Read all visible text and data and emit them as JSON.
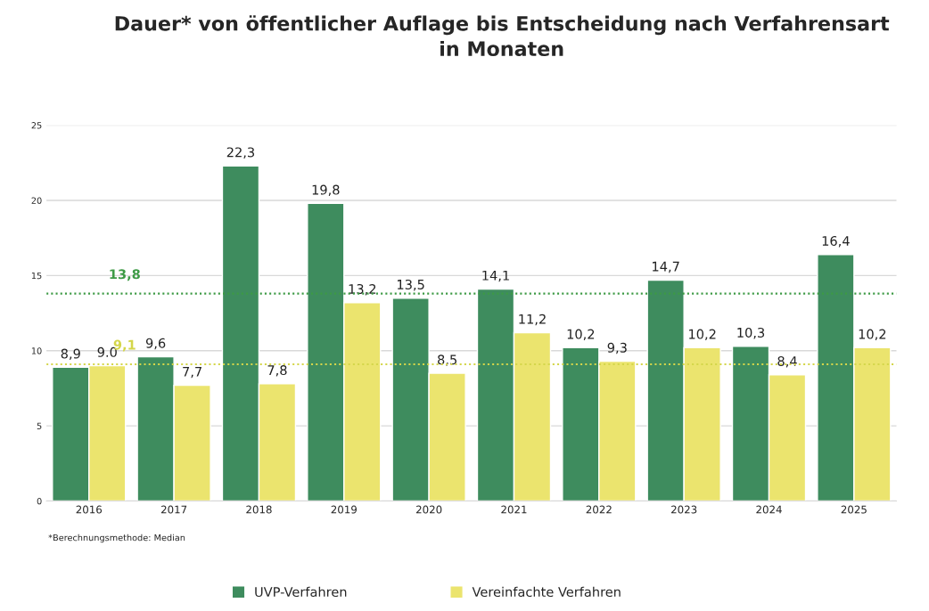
{
  "chart_data": {
    "type": "bar",
    "title": "Dauer* von öffentlicher Auflage bis Entscheidung nach Verfahrensart\nin Monaten",
    "categories": [
      "2016",
      "2017",
      "2018",
      "2019",
      "2020",
      "2021",
      "2022",
      "2023",
      "2024",
      "2025"
    ],
    "series": [
      {
        "name": "UVP-Verfahren",
        "color": "#3e8c5e",
        "values": [
          8.9,
          9.6,
          22.3,
          19.8,
          13.5,
          14.1,
          10.2,
          14.7,
          10.3,
          16.4
        ],
        "value_labels": [
          "8,9",
          "9,6",
          "22,3",
          "19,8",
          "13,5",
          "14,1",
          "10,2",
          "14,7",
          "10,3",
          "16,4"
        ]
      },
      {
        "name": "Vereinfachte Verfahren",
        "color": "#ebe46e",
        "values": [
          9.0,
          7.7,
          7.8,
          13.2,
          8.5,
          11.2,
          9.3,
          10.2,
          8.4,
          10.2
        ],
        "value_labels": [
          "9.0",
          "7,7",
          "7,8",
          "13,2",
          "8,5",
          "11,2",
          "9,3",
          "10,2",
          "8,4",
          "10,2"
        ]
      }
    ],
    "ylim": [
      0,
      25
    ],
    "yticks": [
      0,
      5,
      10,
      15,
      20,
      25
    ],
    "grid": "y",
    "legend": "bottom",
    "ref_lines": [
      {
        "axis": "y",
        "value": 13.8,
        "label": "13,8",
        "color": "#3d9a45",
        "line_style": "dotted"
      },
      {
        "axis": "y",
        "value": 9.1,
        "label": "9,1",
        "color": "#d4d64a",
        "line_style": "dotted"
      }
    ],
    "annotations": [
      "*Berechnungsmethode: Median"
    ]
  }
}
